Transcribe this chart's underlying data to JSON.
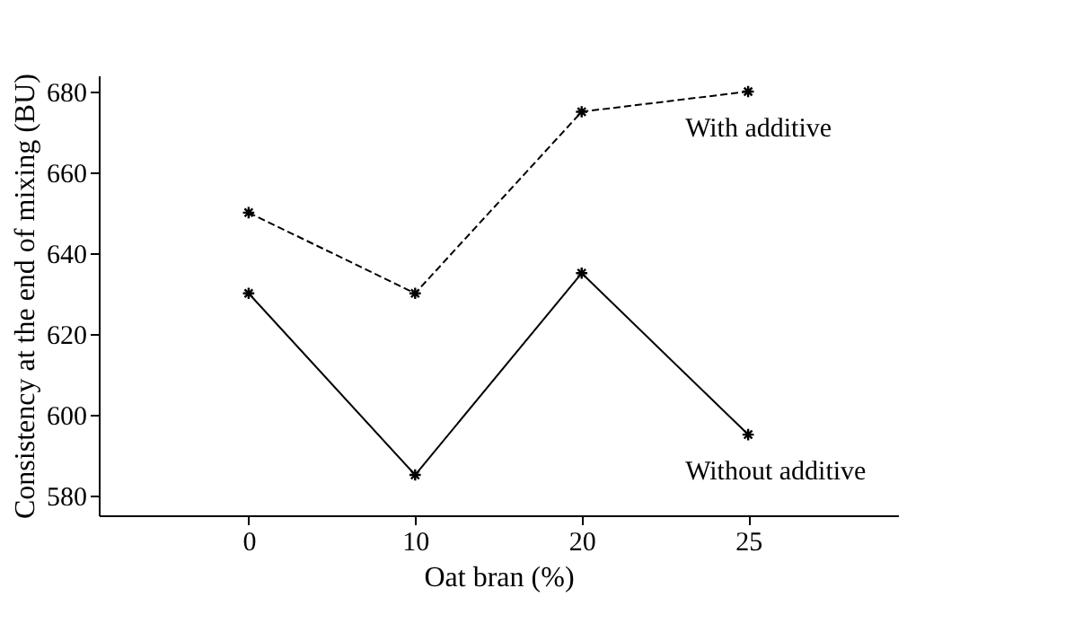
{
  "chart_data": {
    "type": "line",
    "xlabel": "Oat bran (%)",
    "ylabel": "Consistency at the end of mixing (BU)",
    "categories": [
      "0",
      "10",
      "20",
      "25"
    ],
    "series": [
      {
        "name": "With additive",
        "color": "#000000",
        "values": [
          650,
          630,
          675,
          680
        ],
        "line_style": "dashed"
      },
      {
        "name": "Without additive",
        "color": "#000000",
        "values": [
          630,
          585,
          635,
          595
        ],
        "line_style": "solid"
      }
    ],
    "ylim": [
      575,
      684
    ],
    "yticks": [
      580,
      600,
      620,
      640,
      660,
      680
    ],
    "marker": "cross",
    "grid": false,
    "legend": false
  }
}
